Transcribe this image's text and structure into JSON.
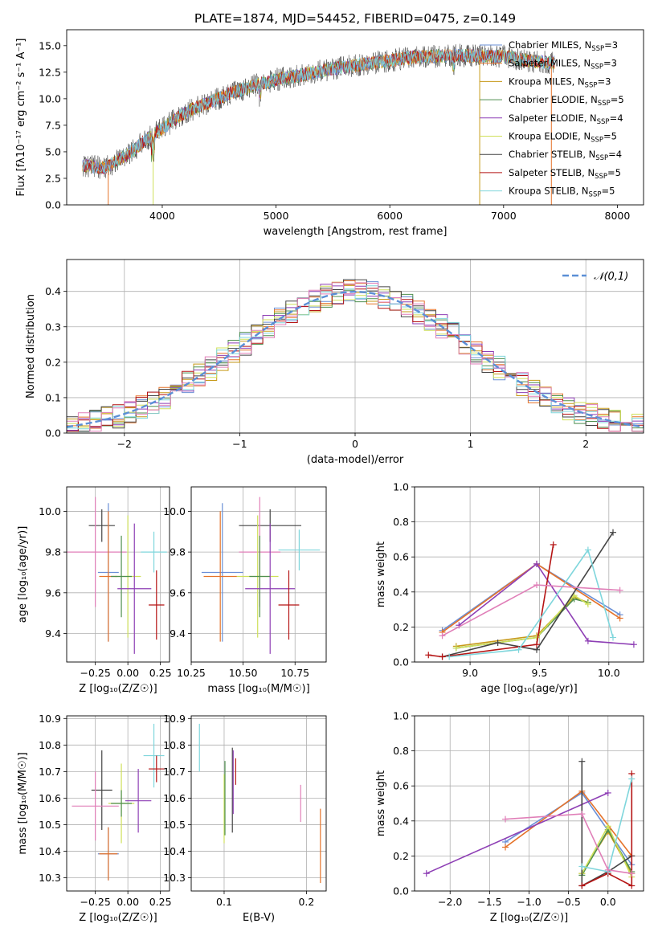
{
  "title": "PLATE=1874, MJD=54452, FIBERID=0475, z=0.149",
  "colors": {
    "chabrier_miles": "#6a8fd6",
    "salpeter_miles": "#e5732a",
    "kroupa_miles": "#c79a1a",
    "chabrier_elodie": "#4f8f4f",
    "salpeter_elodie": "#8e3fb5",
    "kroupa_elodie": "#cfe05a",
    "chabrier_stelib": "#444444",
    "salpeter_stelib": "#b51414",
    "kroupa_stelib": "#7fd6dc",
    "pink": "#e07fb8",
    "normal": "#5b8fd6"
  },
  "chart_data": [
    {
      "id": "spectrum",
      "type": "line",
      "xlabel": "wavelength [Angstrom, rest frame]",
      "ylabel": "Flux [fλ10⁻¹⁷ erg cm⁻² s⁻¹ A⁻¹]",
      "xlim": [
        3160,
        8230
      ],
      "ylim": [
        0,
        16.5
      ],
      "xticks": [
        4000,
        5000,
        6000,
        7000,
        8000
      ],
      "yticks": [
        0.0,
        2.5,
        5.0,
        7.5,
        10.0,
        12.5,
        15.0
      ],
      "grid": false,
      "legend_position": "top-right",
      "continuum": [
        [
          3300,
          3.7
        ],
        [
          3500,
          3.5
        ],
        [
          3700,
          4.8
        ],
        [
          3900,
          6.5
        ],
        [
          4000,
          7.2
        ],
        [
          4200,
          8.7
        ],
        [
          4400,
          9.6
        ],
        [
          4600,
          10.5
        ],
        [
          4800,
          11.2
        ],
        [
          5000,
          11.8
        ],
        [
          5200,
          12.2
        ],
        [
          5400,
          12.6
        ],
        [
          5600,
          13.0
        ],
        [
          5800,
          13.3
        ],
        [
          6000,
          13.6
        ],
        [
          6200,
          13.9
        ],
        [
          6400,
          14.0
        ],
        [
          6600,
          14.1
        ],
        [
          6800,
          14.0
        ],
        [
          7000,
          14.0
        ],
        [
          7200,
          13.6
        ],
        [
          7400,
          13.4
        ]
      ],
      "series": [
        {
          "name": "Chabrier MILES, N_SSP=3",
          "color_key": "chabrier_miles"
        },
        {
          "name": "Salpeter MILES, N_SSP=3",
          "color_key": "salpeter_miles"
        },
        {
          "name": "Kroupa MILES, N_SSP=3",
          "color_key": "kroupa_miles"
        },
        {
          "name": "Chabrier ELODIE, N_SSP=5",
          "color_key": "chabrier_elodie"
        },
        {
          "name": "Salpeter ELODIE, N_SSP=4",
          "color_key": "salpeter_elodie"
        },
        {
          "name": "Kroupa ELODIE, N_SSP=5",
          "color_key": "kroupa_elodie"
        },
        {
          "name": "Chabrier STELIB, N_SSP=4",
          "color_key": "chabrier_stelib"
        },
        {
          "name": "Salpeter STELIB, N_SSP=5",
          "color_key": "salpeter_stelib"
        },
        {
          "name": "Kroupa STELIB, N_SSP=5",
          "color_key": "kroupa_stelib"
        }
      ]
    },
    {
      "id": "residuals",
      "type": "line",
      "xlabel": "(data-model)/error",
      "ylabel": "Normed distribution",
      "xlim": [
        -2.5,
        2.5
      ],
      "ylim": [
        0,
        0.49
      ],
      "xticks": [
        -2,
        -1,
        0,
        1,
        2
      ],
      "yticks": [
        0.0,
        0.1,
        0.2,
        0.3,
        0.4
      ],
      "grid": true,
      "legend_position": "top-right",
      "legend": "𝒩(0,1)",
      "bin_width": 0.1
    },
    {
      "id": "age_vs_Z",
      "type": "scatter",
      "xlabel": "Z [log₁₀(Z/Z☉)]",
      "ylabel": "age  [log₁₀(age/yr)]",
      "xlim": [
        -0.47,
        0.32
      ],
      "ylim": [
        9.26,
        10.12
      ],
      "xticks": [
        -0.25,
        0.0,
        0.25
      ],
      "yticks": [
        9.4,
        9.6,
        9.8,
        10.0
      ],
      "grid": true,
      "points": [
        {
          "c": "chabrier_stelib",
          "x": -0.2,
          "xerr": 0.1,
          "y": 9.93,
          "yerr": 0.08
        },
        {
          "c": "kroupa_stelib",
          "x": 0.2,
          "xerr": 0.1,
          "y": 9.8,
          "yerr": 0.1
        },
        {
          "c": "pink",
          "x": -0.25,
          "xerr": 0.24,
          "y": 9.8,
          "yerr": 0.27
        },
        {
          "c": "chabrier_miles",
          "x": -0.15,
          "xerr": 0.08,
          "y": 9.7,
          "yerr": 0.34
        },
        {
          "c": "salpeter_miles",
          "x": -0.15,
          "xerr": 0.07,
          "y": 9.68,
          "yerr": 0.32
        },
        {
          "c": "kroupa_elodie",
          "x": 0.0,
          "xerr": 0.1,
          "y": 9.68,
          "yerr": 0.3
        },
        {
          "c": "chabrier_elodie",
          "x": -0.05,
          "xerr": 0.08,
          "y": 9.68,
          "yerr": 0.2
        },
        {
          "c": "salpeter_elodie",
          "x": 0.05,
          "xerr": 0.13,
          "y": 9.62,
          "yerr": 0.32
        },
        {
          "c": "salpeter_stelib",
          "x": 0.22,
          "xerr": 0.06,
          "y": 9.54,
          "yerr": 0.17
        }
      ]
    },
    {
      "id": "age_vs_mass",
      "type": "scatter",
      "xlabel": "mass [log₁₀(M/M☉)]",
      "ylabel": "",
      "xlim": [
        10.25,
        10.9
      ],
      "ylim": [
        9.26,
        10.12
      ],
      "xticks": [
        10.25,
        10.5,
        10.75
      ],
      "yticks": [
        9.4,
        9.6,
        9.8,
        10.0
      ],
      "grid": true,
      "points": [
        {
          "c": "chabrier_stelib",
          "x": 10.63,
          "xerr": 0.15,
          "y": 9.93,
          "yerr": 0.08
        },
        {
          "c": "kroupa_stelib",
          "x": 10.77,
          "xerr": 0.1,
          "y": 9.81,
          "yerr": 0.1
        },
        {
          "c": "pink",
          "x": 10.58,
          "xerr": 0.1,
          "y": 9.8,
          "yerr": 0.27
        },
        {
          "c": "chabrier_miles",
          "x": 10.4,
          "xerr": 0.1,
          "y": 9.7,
          "yerr": 0.34
        },
        {
          "c": "salpeter_miles",
          "x": 10.39,
          "xerr": 0.08,
          "y": 9.68,
          "yerr": 0.32
        },
        {
          "c": "kroupa_elodie",
          "x": 10.57,
          "xerr": 0.1,
          "y": 9.68,
          "yerr": 0.3
        },
        {
          "c": "chabrier_elodie",
          "x": 10.58,
          "xerr": 0.05,
          "y": 9.68,
          "yerr": 0.2
        },
        {
          "c": "salpeter_elodie",
          "x": 10.63,
          "xerr": 0.12,
          "y": 9.62,
          "yerr": 0.32
        },
        {
          "c": "salpeter_stelib",
          "x": 10.72,
          "xerr": 0.05,
          "y": 9.54,
          "yerr": 0.17
        }
      ]
    },
    {
      "id": "weight_vs_age",
      "type": "line",
      "xlabel": "age  [log₁₀(age/yr)]",
      "ylabel": "mass weight",
      "xlim": [
        8.6,
        10.25
      ],
      "ylim": [
        0,
        1.0
      ],
      "xticks": [
        9.0,
        9.5,
        10.0
      ],
      "yticks": [
        0.0,
        0.2,
        0.4,
        0.6,
        0.8,
        1.0
      ],
      "grid": true,
      "series": [
        {
          "c": "chabrier_miles",
          "x": [
            8.8,
            9.48,
            10.08
          ],
          "y": [
            0.18,
            0.56,
            0.27
          ]
        },
        {
          "c": "salpeter_miles",
          "x": [
            8.8,
            9.48,
            10.08
          ],
          "y": [
            0.17,
            0.56,
            0.25
          ]
        },
        {
          "c": "kroupa_miles",
          "x": [
            8.9,
            9.48,
            9.75,
            9.85
          ],
          "y": [
            0.09,
            0.15,
            0.37,
            0.34
          ]
        },
        {
          "c": "chabrier_elodie",
          "x": [
            8.9,
            9.48,
            9.75,
            9.85
          ],
          "y": [
            0.08,
            0.14,
            0.36,
            0.34
          ]
        },
        {
          "c": "salpeter_elodie",
          "x": [
            8.92,
            9.48,
            9.85,
            10.18
          ],
          "y": [
            0.21,
            0.56,
            0.12,
            0.1
          ]
        },
        {
          "c": "kroupa_elodie",
          "x": [
            8.9,
            9.48,
            9.75,
            9.85
          ],
          "y": [
            0.08,
            0.14,
            0.38,
            0.33
          ]
        },
        {
          "c": "chabrier_stelib",
          "x": [
            8.8,
            9.2,
            9.48,
            10.03
          ],
          "y": [
            0.03,
            0.11,
            0.07,
            0.74
          ]
        },
        {
          "c": "salpeter_stelib",
          "x": [
            8.7,
            8.8,
            9.48,
            9.6
          ],
          "y": [
            0.04,
            0.03,
            0.1,
            0.67
          ]
        },
        {
          "c": "kroupa_stelib",
          "x": [
            8.85,
            9.35,
            9.85,
            10.03
          ],
          "y": [
            0.03,
            0.07,
            0.64,
            0.14
          ]
        },
        {
          "c": "pink",
          "x": [
            8.8,
            9.48,
            10.08
          ],
          "y": [
            0.15,
            0.44,
            0.41
          ]
        }
      ]
    },
    {
      "id": "mass_vs_Z",
      "type": "scatter",
      "xlabel": "Z [log₁₀(Z/Z☉)]",
      "ylabel": "mass [log₁₀(M/M☉)]",
      "xlim": [
        -0.47,
        0.32
      ],
      "ylim": [
        10.25,
        10.91
      ],
      "xticks": [
        -0.25,
        0.0,
        0.25
      ],
      "yticks": [
        10.3,
        10.4,
        10.5,
        10.6,
        10.7,
        10.8,
        10.9
      ],
      "grid": true,
      "points": [
        {
          "c": "kroupa_stelib",
          "x": 0.2,
          "xerr": 0.08,
          "y": 10.76,
          "yerr": 0.12
        },
        {
          "c": "salpeter_stelib",
          "x": 0.22,
          "xerr": 0.06,
          "y": 10.71,
          "yerr": 0.05
        },
        {
          "c": "chabrier_stelib",
          "x": -0.2,
          "xerr": 0.08,
          "y": 10.63,
          "yerr": 0.15
        },
        {
          "c": "pink",
          "x": -0.25,
          "xerr": 0.18,
          "y": 10.57,
          "yerr": 0.13
        },
        {
          "c": "salpeter_elodie",
          "x": 0.08,
          "xerr": 0.1,
          "y": 10.59,
          "yerr": 0.12
        },
        {
          "c": "kroupa_elodie",
          "x": -0.05,
          "xerr": 0.1,
          "y": 10.58,
          "yerr": 0.15
        },
        {
          "c": "chabrier_elodie",
          "x": -0.05,
          "xerr": 0.08,
          "y": 10.58,
          "yerr": 0.05
        },
        {
          "c": "chabrier_miles",
          "x": -0.15,
          "xerr": 0.08,
          "y": 10.39,
          "yerr": 0.1
        },
        {
          "c": "salpeter_miles",
          "x": -0.15,
          "xerr": 0.07,
          "y": 10.39,
          "yerr": 0.1
        }
      ]
    },
    {
      "id": "mass_vs_ebv",
      "type": "scatter",
      "xlabel": "E(B-V)",
      "ylabel": "",
      "xlim": [
        0.06,
        0.224
      ],
      "ylim": [
        10.25,
        10.91
      ],
      "xticks": [
        0.1,
        0.2
      ],
      "yticks": [
        10.3,
        10.4,
        10.5,
        10.6,
        10.7,
        10.8,
        10.9
      ],
      "grid": true,
      "points": [
        {
          "c": "kroupa_stelib",
          "x": 0.07,
          "y": 10.79,
          "yerr": 0.09
        },
        {
          "c": "kroupa_elodie",
          "x": 0.1,
          "y": 10.56,
          "yerr": 0.13
        },
        {
          "c": "chabrier_elodie",
          "x": 0.101,
          "y": 10.6,
          "yerr": 0.14
        },
        {
          "c": "chabrier_stelib",
          "x": 0.11,
          "y": 10.63,
          "yerr": 0.16
        },
        {
          "c": "salpeter_elodie",
          "x": 0.111,
          "y": 10.66,
          "yerr": 0.12
        },
        {
          "c": "salpeter_stelib",
          "x": 0.114,
          "y": 10.7,
          "yerr": 0.05
        },
        {
          "c": "pink",
          "x": 0.193,
          "y": 10.58,
          "yerr": 0.07
        },
        {
          "c": "salpeter_miles",
          "x": 0.217,
          "y": 10.42,
          "yerr": 0.14
        }
      ]
    },
    {
      "id": "weight_vs_Z",
      "type": "line",
      "xlabel": "Z [log₁₀(Z/Z☉)]",
      "ylabel": "mass weight",
      "xlim": [
        -2.45,
        0.45
      ],
      "ylim": [
        0,
        1.0
      ],
      "xticks": [
        -2.0,
        -1.5,
        -1.0,
        -0.5,
        0.0
      ],
      "yticks": [
        0.0,
        0.2,
        0.4,
        0.6,
        0.8,
        1.0
      ],
      "grid": true,
      "series": [
        {
          "c": "chabrier_miles",
          "x": [
            -1.3,
            -0.33,
            0.3
          ],
          "y": [
            0.28,
            0.56,
            0.15
          ]
        },
        {
          "c": "salpeter_miles",
          "x": [
            -1.3,
            -0.33,
            0.3
          ],
          "y": [
            0.25,
            0.57,
            0.2
          ]
        },
        {
          "c": "kroupa_miles",
          "x": [
            -0.33,
            0.0,
            0.3
          ],
          "y": [
            0.1,
            0.34,
            0.1
          ]
        },
        {
          "c": "chabrier_elodie",
          "x": [
            -0.33,
            0.0,
            0.3
          ],
          "y": [
            0.09,
            0.35,
            0.11
          ]
        },
        {
          "c": "salpeter_elodie",
          "x": [
            -2.3,
            0.0
          ],
          "y": [
            0.1,
            0.56
          ]
        },
        {
          "c": "kroupa_elodie",
          "x": [
            -0.33,
            0.0,
            0.3
          ],
          "y": [
            0.1,
            0.37,
            0.08
          ]
        },
        {
          "c": "chabrier_stelib",
          "x": [
            -0.33,
            -0.33,
            0.0,
            0.3
          ],
          "y": [
            0.74,
            0.03,
            0.11,
            0.2
          ]
        },
        {
          "c": "salpeter_stelib",
          "x": [
            -0.33,
            0.0,
            0.3,
            0.3
          ],
          "y": [
            0.03,
            0.1,
            0.03,
            0.67
          ]
        },
        {
          "c": "kroupa_stelib",
          "x": [
            -0.33,
            0.0,
            0.3
          ],
          "y": [
            0.14,
            0.11,
            0.64
          ]
        },
        {
          "c": "pink",
          "x": [
            -1.3,
            -0.33,
            0.0,
            0.3
          ],
          "y": [
            0.41,
            0.44,
            0.12,
            0.1
          ]
        }
      ]
    }
  ]
}
